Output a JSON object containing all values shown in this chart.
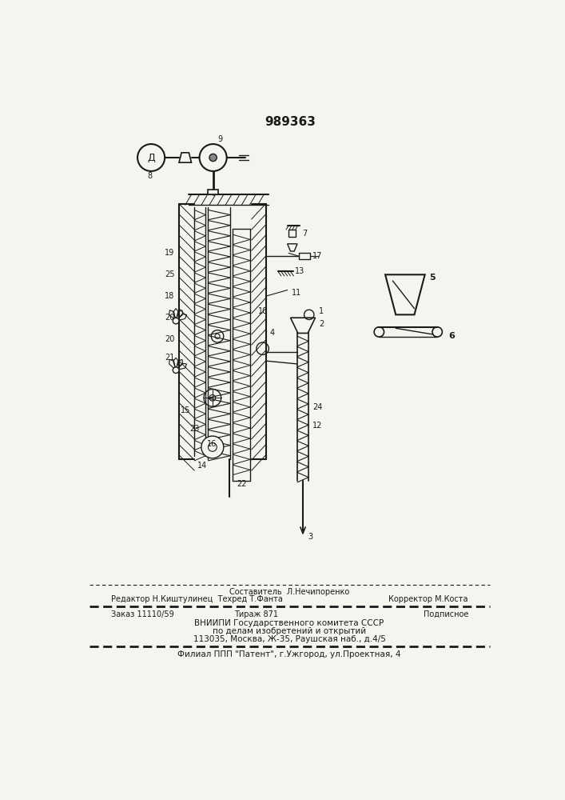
{
  "patent_number": "989363",
  "background_color": "#f5f5f0",
  "line_color": "#1a1a1a",
  "fig_width": 7.07,
  "fig_height": 10.0,
  "dpi": 100,
  "footer_line1": "Составитель  Л.Нечипоренко",
  "footer_line2a": "Редактор Н.Киштулинец  Техред Т.Фанта",
  "footer_line2b": "Корректор М.Коста",
  "footer_line3a": "Заказ 11110/59",
  "footer_line3b": "Тираж 871",
  "footer_line3c": "Подписное",
  "footer_line4": "ВНИИПИ Государственного комитета СССР",
  "footer_line5": "по делам изобретений и открытий",
  "footer_line6": "113035, Москва, Ж-35, Раушская наб., д.4/5",
  "footer_line7": "Филиал ППП \"Патент\", г.Ужгород, ул.Проектная, 4"
}
